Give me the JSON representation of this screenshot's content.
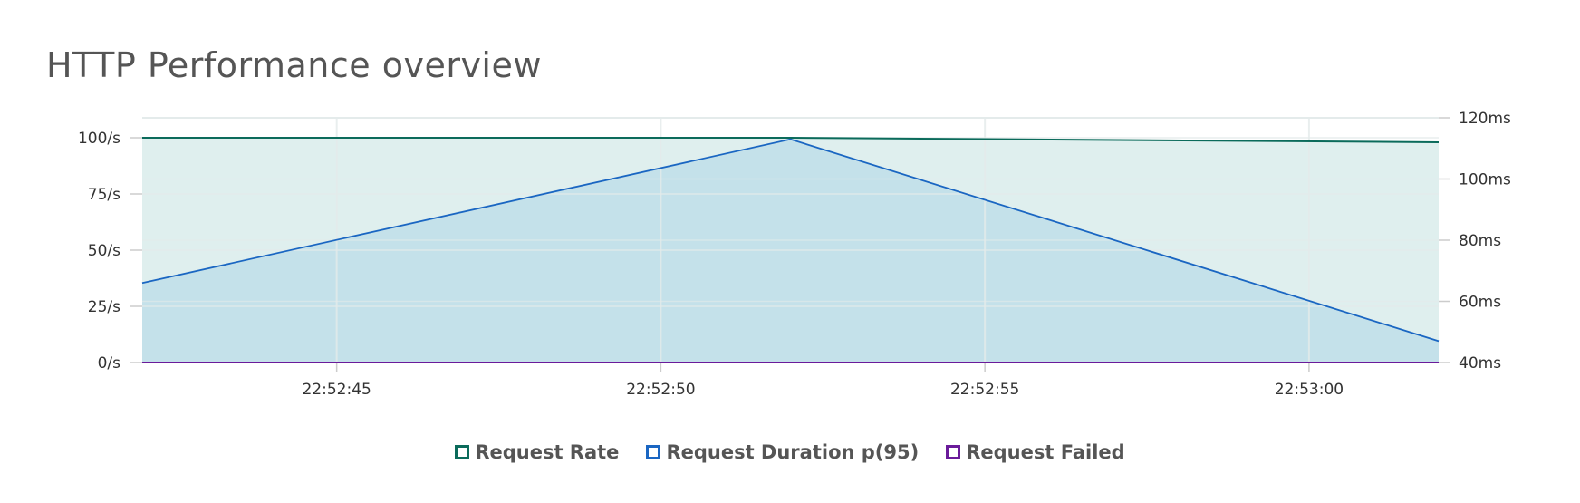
{
  "title": "HTTP Performance overview",
  "colors": {
    "rate": "#0b6b5b",
    "rate_fill": "#dfefee",
    "duration": "#1a66c2",
    "duration_fill": "#c4e1ea",
    "failed": "#6a1b9a",
    "grid": "#e4ebeb",
    "text": "#333333"
  },
  "chart_data": {
    "type": "area",
    "x": [
      "22:52:42",
      "22:52:52",
      "22:53:02"
    ],
    "x_ticks": [
      "22:52:45",
      "22:52:50",
      "22:52:55",
      "22:53:00"
    ],
    "y_left_ticks": [
      "0/s",
      "25/s",
      "50/s",
      "75/s",
      "100/s"
    ],
    "y_right_ticks": [
      "40ms",
      "60ms",
      "80ms",
      "100ms",
      "120ms"
    ],
    "y_left_range": [
      0,
      100
    ],
    "y_right_range": [
      40,
      120
    ],
    "series": [
      {
        "name": "Request Rate",
        "axis": "left",
        "values": [
          100,
          100,
          98
        ]
      },
      {
        "name": "Request Duration p(95)",
        "axis": "right",
        "values": [
          66,
          113,
          47
        ]
      },
      {
        "name": "Request Failed",
        "axis": "left",
        "values": [
          0,
          0,
          0
        ]
      }
    ],
    "grid": true,
    "legend_position": "bottom-center"
  }
}
